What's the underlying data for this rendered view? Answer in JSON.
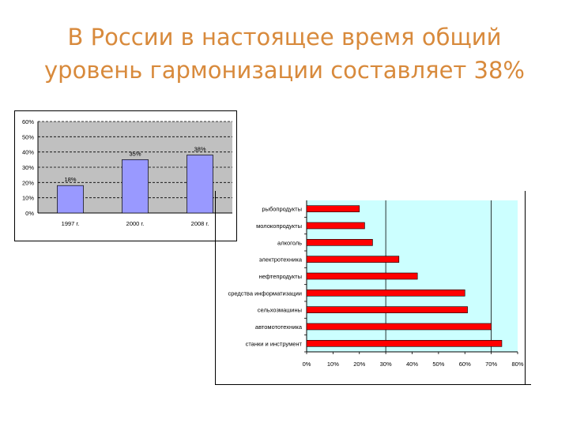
{
  "title": {
    "line1": "В России в настоящее время общий",
    "line2": "уровень гармонизации составляет 38%"
  },
  "colors": {
    "title": "#d88a3c",
    "chart1_plot_bg": "#c0c0c0",
    "chart1_bar": "#9999ff",
    "chart2_plot_bg": "#ccffff",
    "chart2_bar": "#ff0000"
  },
  "chart_data": [
    {
      "type": "bar",
      "orientation": "vertical",
      "categories": [
        "1997 г.",
        "2000 г.",
        "2008 г."
      ],
      "values": [
        18,
        35,
        38
      ],
      "data_labels": [
        "18%",
        "35%",
        "38%"
      ],
      "ylim": [
        0,
        60
      ],
      "yticks": [
        "0%",
        "10%",
        "20%",
        "30%",
        "40%",
        "50%",
        "60%"
      ],
      "grid": "dashed horizontal",
      "title": "",
      "xlabel": "",
      "ylabel": ""
    },
    {
      "type": "bar",
      "orientation": "horizontal",
      "categories": [
        "рыбопродукты",
        "молокопродукты",
        "алкоголь",
        "электротехника",
        "нефтепродукты",
        "средства информатизации",
        "сельхозмашины",
        "автомототехника",
        "станки и инструмент"
      ],
      "values": [
        20,
        22,
        25,
        35,
        42,
        60,
        61,
        70,
        74
      ],
      "xlim": [
        0,
        80
      ],
      "xticks": [
        "0%",
        "10%",
        "20%",
        "30%",
        "40%",
        "50%",
        "60%",
        "70%",
        "80%"
      ],
      "grid": "vertical lines at 30% and 70%",
      "title": "",
      "xlabel": "",
      "ylabel": ""
    }
  ]
}
